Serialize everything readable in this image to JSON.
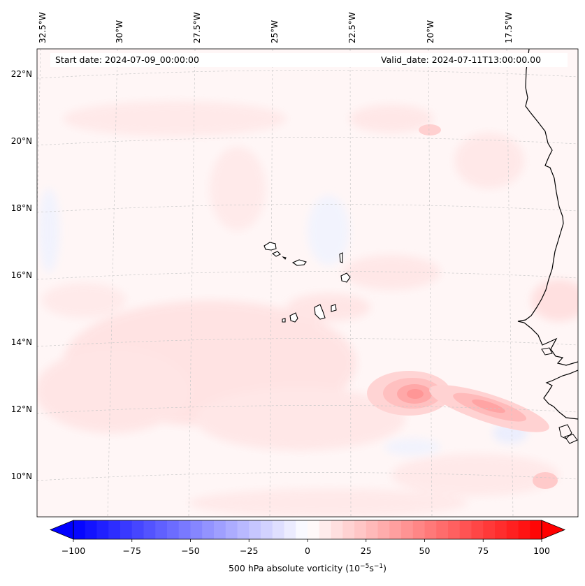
{
  "map": {
    "start_label": "Start date: 2024-07-09_00:00:00",
    "valid_label": "Valid_date: 2024-07-11T13:00:00.00",
    "lon_labels": [
      "32.5°W",
      "30°W",
      "27.5°W",
      "25°W",
      "22.5°W",
      "20°W",
      "17.5°W"
    ],
    "lat_labels": [
      "22°N",
      "20°N",
      "18°N",
      "16°N",
      "14°N",
      "12°N",
      "10°N"
    ],
    "islands": "Cape Verde islands",
    "coast": "West African coastline"
  },
  "colorbar": {
    "label_prefix": "500 hPa absolute vorticity (10",
    "label_sup1": "−5",
    "label_mid": "s",
    "label_sup2": "−1",
    "label_suffix": ")",
    "ticks": [
      "−100",
      "−75",
      "−50",
      "−25",
      "0",
      "25",
      "50",
      "75",
      "100"
    ],
    "tick_values": [
      -100,
      -75,
      -50,
      -25,
      0,
      25,
      50,
      75,
      100
    ],
    "min": -100,
    "max": 100,
    "color_min": "#0000ff",
    "color_mid": "#ffffff",
    "color_max": "#ff0000"
  }
}
